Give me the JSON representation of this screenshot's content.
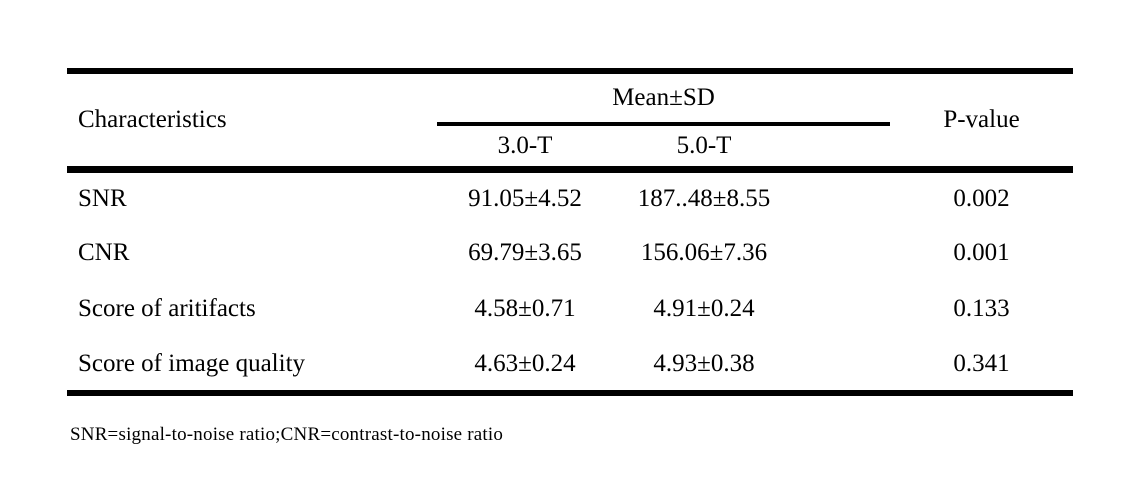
{
  "table": {
    "header": {
      "characteristics_label": "Characteristics",
      "mean_sd_label": "Mean±SD",
      "field_strength_columns": [
        "3.0-T",
        "5.0-T"
      ],
      "p_value_label": "P-value"
    },
    "rows": [
      {
        "characteristic": "SNR",
        "mean_sd_3t": "91.05±4.52",
        "mean_sd_5t": "187..48±8.55",
        "p_value": "0.002"
      },
      {
        "characteristic": "CNR",
        "mean_sd_3t": "69.79±3.65",
        "mean_sd_5t": "156.06±7.36",
        "p_value": "0.001"
      },
      {
        "characteristic": "Score of aritifacts",
        "mean_sd_3t": "4.58±0.71",
        "mean_sd_5t": "4.91±0.24",
        "p_value": "0.133"
      },
      {
        "characteristic": "Score of image quality",
        "mean_sd_3t": "4.63±0.24",
        "mean_sd_5t": "4.93±0.38",
        "p_value": "0.341"
      }
    ],
    "footnote": "SNR=signal-to-noise ratio;CNR=contrast-to-noise ratio"
  },
  "colors": {
    "text": "#000000",
    "background": "#ffffff",
    "rule": "#000000"
  }
}
